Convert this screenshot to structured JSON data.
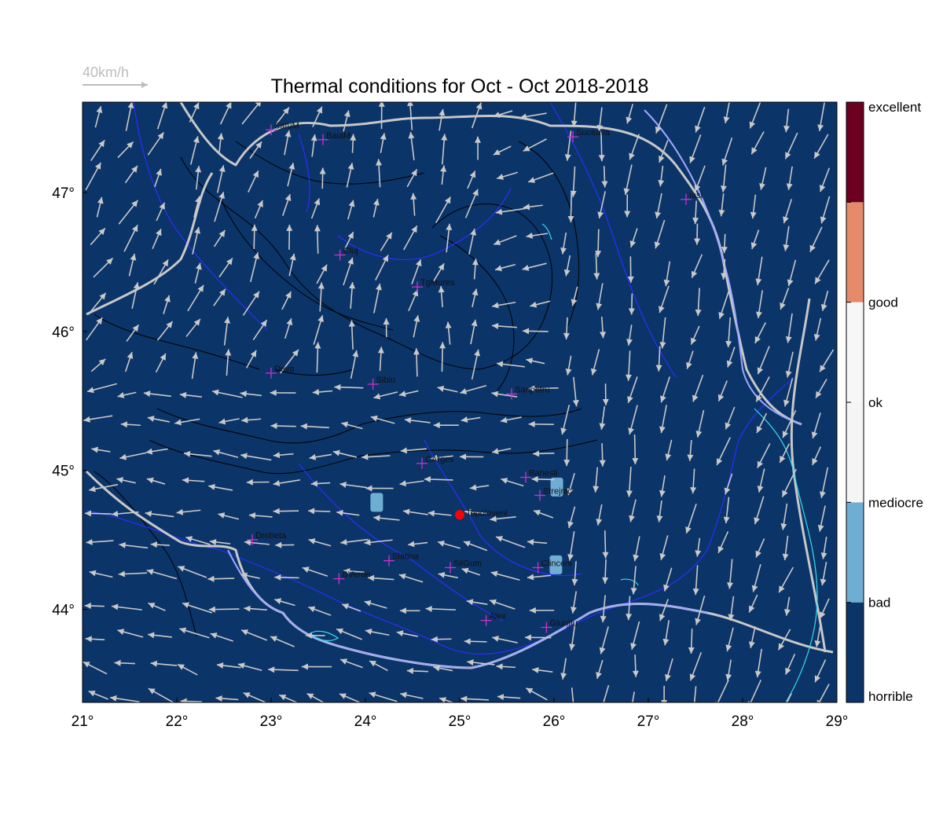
{
  "title": "Thermal conditions for Oct - Oct  2018-2018",
  "wind_reference": {
    "label": "40km/h"
  },
  "map": {
    "lon_range": [
      21,
      29
    ],
    "lat_range": [
      43.33,
      47.65
    ],
    "lon_ticks": [
      "21°",
      "22°",
      "23°",
      "24°",
      "25°",
      "26°",
      "27°",
      "28°",
      "29°"
    ],
    "lat_ticks": [
      "44°",
      "45°",
      "46°",
      "47°"
    ],
    "fill_color": "#0b3468",
    "border_color": "#c8c8c8",
    "river_color": "#2d2dff",
    "contour_color": "#000000",
    "city_marker_color": "#cc33cc"
  },
  "colorbar": {
    "categories": [
      "horrible",
      "bad",
      "mediocre",
      "ok",
      "good",
      "excellent"
    ],
    "colors": [
      "#0b3468",
      "#6eaed3",
      "#f5f5f5",
      "#f7f7f7",
      "#e58a6b",
      "#6b0021"
    ]
  },
  "cities": [
    {
      "name": "SatuM",
      "lon": 23.0,
      "lat": 47.45
    },
    {
      "name": "BaiaM",
      "lon": 23.55,
      "lat": 47.38
    },
    {
      "name": "Suceava",
      "lon": 26.2,
      "lat": 47.4
    },
    {
      "name": "Iasi",
      "lon": 27.4,
      "lat": 46.95
    },
    {
      "name": "Cluj",
      "lon": 23.73,
      "lat": 46.55
    },
    {
      "name": "TgMures",
      "lon": 24.55,
      "lat": 46.32
    },
    {
      "name": "Deva",
      "lon": 23.0,
      "lat": 45.7
    },
    {
      "name": "Sibiu",
      "lon": 24.08,
      "lat": 45.62
    },
    {
      "name": "Sanpetru",
      "lon": 25.55,
      "lat": 45.55
    },
    {
      "name": "CArges",
      "lon": 24.6,
      "lat": 45.05
    },
    {
      "name": "Banesti",
      "lon": 25.7,
      "lat": 44.95
    },
    {
      "name": "Strejnic",
      "lon": 25.85,
      "lat": 44.82
    },
    {
      "name": "Drobeta",
      "lon": 22.8,
      "lat": 44.5
    },
    {
      "name": "Slatina",
      "lon": 24.25,
      "lat": 44.35
    },
    {
      "name": "SilGum",
      "lon": 24.9,
      "lat": 44.3
    },
    {
      "name": "Clinceni",
      "lon": 25.83,
      "lat": 44.3
    },
    {
      "name": "BVerde",
      "lon": 23.72,
      "lat": 44.22
    },
    {
      "name": "Alex",
      "lon": 25.28,
      "lat": 43.92
    },
    {
      "name": "Giurgiu",
      "lon": 25.92,
      "lat": 43.87
    }
  ],
  "highlight_site": {
    "name": "Topoloveni",
    "lon": 25.0,
    "lat": 44.68,
    "color": "#ff0000"
  },
  "bad_patches": [
    {
      "lon": 24.12,
      "lat": 44.77
    },
    {
      "lon": 26.03,
      "lat": 44.88
    },
    {
      "lon": 26.02,
      "lat": 44.32
    }
  ]
}
